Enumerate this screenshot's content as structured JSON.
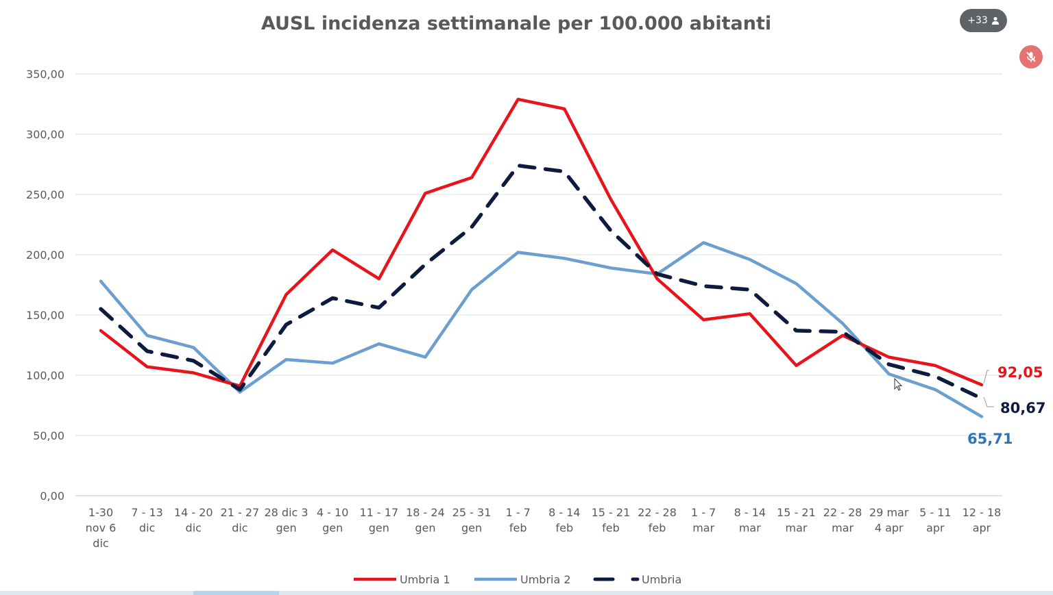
{
  "overlay": {
    "participants_count": "+33",
    "participants_icon": "person-icon",
    "mute_icon": "microphone-muted-icon",
    "mute_color": "#e57373",
    "badge_color": "#5f6368"
  },
  "chart_data": {
    "type": "line",
    "title": "AUSL incidenza settimanale  per 100.000 abitanti",
    "categories": [
      [
        "1-30",
        "nov 6",
        "dic"
      ],
      [
        "7 - 13",
        "dic"
      ],
      [
        "14 - 20",
        "dic"
      ],
      [
        "21 - 27",
        "dic"
      ],
      [
        "28 dic 3",
        "gen"
      ],
      [
        "4 - 10",
        "gen"
      ],
      [
        "11 - 17",
        "gen"
      ],
      [
        "18 - 24",
        "gen"
      ],
      [
        "25 - 31",
        "gen"
      ],
      [
        "1 - 7",
        "feb"
      ],
      [
        "8 - 14",
        "feb"
      ],
      [
        "15 - 21",
        "feb"
      ],
      [
        "22 - 28",
        "feb"
      ],
      [
        "1 - 7",
        "mar"
      ],
      [
        "8 - 14",
        "mar"
      ],
      [
        "15 - 21",
        "mar"
      ],
      [
        "22 - 28",
        "mar"
      ],
      [
        "29 mar",
        "4 apr"
      ],
      [
        "5 - 11",
        "apr"
      ],
      [
        "12 - 18",
        "apr"
      ]
    ],
    "y_ticks": [
      "0,00",
      "50,00",
      "100,00",
      "150,00",
      "200,00",
      "250,00",
      "300,00",
      "350,00"
    ],
    "ylim": [
      0,
      350
    ],
    "grid": true,
    "legend_position": "bottom",
    "series": [
      {
        "name": "Umbria 1",
        "color": "#e8141c",
        "style": "solid",
        "values": [
          137,
          107,
          102,
          91,
          167,
          204,
          180,
          251,
          264,
          329,
          321,
          246,
          180,
          146,
          151,
          108,
          133,
          115,
          108,
          92.05
        ],
        "end_label": "92,05"
      },
      {
        "name": "Umbria 2",
        "color": "#6a9fcf",
        "style": "solid",
        "values": [
          178,
          133,
          123,
          86,
          113,
          110,
          126,
          115,
          171,
          202,
          197,
          189,
          184,
          210,
          196,
          176,
          143,
          101,
          88,
          65.71
        ],
        "end_label": "65,71",
        "end_label_color": "#2e75b6"
      },
      {
        "name": "Umbria",
        "color": "#0d1b3e",
        "style": "dashed",
        "values": [
          155,
          120,
          112,
          88,
          142,
          164,
          156,
          192,
          223,
          274,
          269,
          220,
          184,
          174,
          171,
          137,
          136,
          109,
          99,
          80.67
        ],
        "end_label": "80,67"
      }
    ]
  }
}
